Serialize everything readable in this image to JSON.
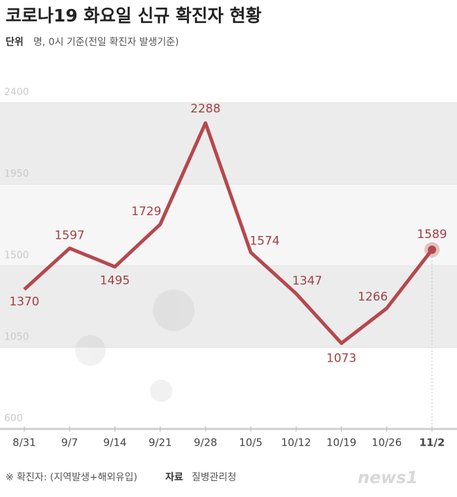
{
  "chart_data": {
    "type": "line",
    "title": "코로나19 화요일 신규 확진자 현황",
    "unit_label": "단위",
    "unit": "명, 0시 기준(전일 확진자 발생기준)",
    "categories": [
      "8/31",
      "9/7",
      "9/14",
      "9/21",
      "9/28",
      "10/5",
      "10/12",
      "10/19",
      "10/26",
      "11/2"
    ],
    "values": [
      1370,
      1597,
      1495,
      1729,
      2288,
      1574,
      1347,
      1073,
      1266,
      1589
    ],
    "color": "#b5484d",
    "ylim": [
      600,
      2400
    ],
    "yticks": [
      600,
      1050,
      1500,
      1950,
      2400
    ],
    "grid": true,
    "note": "※ 확진자: (지역발생+해외유입)",
    "source_label": "자료",
    "source": "질병관리청",
    "logo": "news1"
  }
}
